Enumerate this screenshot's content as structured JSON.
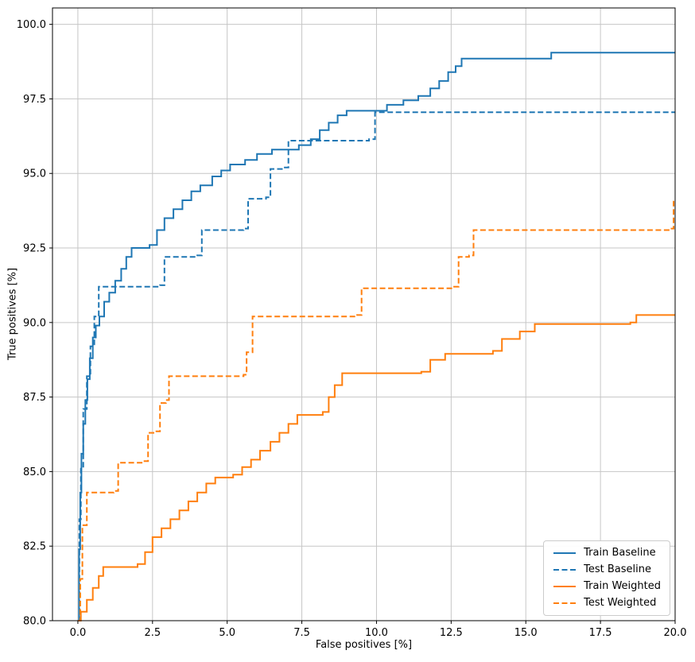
{
  "figure": {
    "xlabel": "False positives [%]",
    "ylabel": "True positives [%]"
  },
  "chart_data": {
    "type": "line",
    "subtype": "roc-step-curves",
    "title": "",
    "xlabel": "False positives [%]",
    "ylabel": "True positives [%]",
    "xlim": [
      0,
      20
    ],
    "ylim": [
      80,
      100
    ],
    "grid": true,
    "legend_position": "lower right",
    "xticks": [
      0.0,
      2.5,
      5.0,
      7.5,
      10.0,
      12.5,
      15.0,
      17.5,
      20.0
    ],
    "yticks": [
      80.0,
      82.5,
      85.0,
      87.5,
      90.0,
      92.5,
      95.0,
      97.5,
      100.0
    ],
    "xtick_labels": [
      "0.0",
      "2.5",
      "5.0",
      "7.5",
      "10.0",
      "12.5",
      "15.0",
      "17.5",
      "20.0"
    ],
    "ytick_labels": [
      "80.0",
      "82.5",
      "85.0",
      "87.5",
      "90.0",
      "92.5",
      "95.0",
      "97.5",
      "100.0"
    ],
    "colors": {
      "blue": "#1f77b4",
      "orange": "#ff7f0e",
      "grid": "#c6c6c6",
      "axis": "#000000"
    },
    "series": [
      {
        "name": "Train Baseline",
        "color": "#1f77b4",
        "line": "solid",
        "points": [
          [
            0,
            80
          ],
          [
            0.04,
            82.4
          ],
          [
            0.08,
            84.3
          ],
          [
            0.12,
            85.6
          ],
          [
            0.18,
            86.6
          ],
          [
            0.25,
            87.4
          ],
          [
            0.32,
            88.1
          ],
          [
            0.4,
            88.8
          ],
          [
            0.5,
            89.5
          ],
          [
            0.6,
            89.9
          ],
          [
            0.72,
            90.2
          ],
          [
            0.88,
            90.7
          ],
          [
            1.05,
            91.0
          ],
          [
            1.25,
            91.4
          ],
          [
            1.45,
            91.8
          ],
          [
            1.62,
            92.2
          ],
          [
            1.8,
            92.5
          ],
          [
            2.4,
            92.6
          ],
          [
            2.65,
            93.1
          ],
          [
            2.9,
            93.5
          ],
          [
            3.2,
            93.8
          ],
          [
            3.5,
            94.1
          ],
          [
            3.8,
            94.4
          ],
          [
            4.1,
            94.6
          ],
          [
            4.5,
            94.9
          ],
          [
            4.8,
            95.1
          ],
          [
            5.1,
            95.3
          ],
          [
            5.6,
            95.45
          ],
          [
            6.0,
            95.65
          ],
          [
            6.5,
            95.8
          ],
          [
            7.4,
            95.95
          ],
          [
            7.8,
            96.15
          ],
          [
            8.1,
            96.45
          ],
          [
            8.4,
            96.7
          ],
          [
            8.7,
            96.95
          ],
          [
            9.0,
            97.1
          ],
          [
            10.35,
            97.3
          ],
          [
            10.9,
            97.45
          ],
          [
            11.4,
            97.6
          ],
          [
            11.8,
            97.85
          ],
          [
            12.1,
            98.1
          ],
          [
            12.4,
            98.4
          ],
          [
            12.65,
            98.6
          ],
          [
            12.85,
            98.85
          ],
          [
            15.85,
            99.05
          ],
          [
            20,
            99.05
          ]
        ]
      },
      {
        "name": "Test Baseline",
        "color": "#1f77b4",
        "line": "dashed",
        "points": [
          [
            0,
            80
          ],
          [
            0.05,
            83.4
          ],
          [
            0.1,
            85.1
          ],
          [
            0.18,
            87.1
          ],
          [
            0.3,
            88.2
          ],
          [
            0.42,
            89.2
          ],
          [
            0.55,
            90.2
          ],
          [
            0.7,
            91.2
          ],
          [
            2.75,
            91.25
          ],
          [
            2.9,
            92.2
          ],
          [
            4.0,
            92.25
          ],
          [
            4.15,
            93.1
          ],
          [
            5.55,
            93.15
          ],
          [
            5.7,
            94.15
          ],
          [
            6.3,
            94.2
          ],
          [
            6.45,
            95.15
          ],
          [
            6.9,
            95.2
          ],
          [
            7.05,
            96.1
          ],
          [
            9.75,
            96.15
          ],
          [
            9.95,
            97.05
          ],
          [
            20,
            97.05
          ]
        ]
      },
      {
        "name": "Train Weighted",
        "color": "#ff7f0e",
        "line": "solid",
        "points": [
          [
            0,
            80
          ],
          [
            0.1,
            80.3
          ],
          [
            0.3,
            80.7
          ],
          [
            0.5,
            81.1
          ],
          [
            0.7,
            81.5
          ],
          [
            0.85,
            81.8
          ],
          [
            2.0,
            81.9
          ],
          [
            2.25,
            82.3
          ],
          [
            2.5,
            82.8
          ],
          [
            2.8,
            83.1
          ],
          [
            3.1,
            83.4
          ],
          [
            3.4,
            83.7
          ],
          [
            3.7,
            84.0
          ],
          [
            4.0,
            84.3
          ],
          [
            4.3,
            84.6
          ],
          [
            4.6,
            84.8
          ],
          [
            5.2,
            84.9
          ],
          [
            5.5,
            85.15
          ],
          [
            5.8,
            85.4
          ],
          [
            6.1,
            85.7
          ],
          [
            6.45,
            86.0
          ],
          [
            6.75,
            86.3
          ],
          [
            7.05,
            86.6
          ],
          [
            7.35,
            86.9
          ],
          [
            8.2,
            87.0
          ],
          [
            8.4,
            87.5
          ],
          [
            8.6,
            87.9
          ],
          [
            8.85,
            88.3
          ],
          [
            11.5,
            88.35
          ],
          [
            11.8,
            88.75
          ],
          [
            12.3,
            88.95
          ],
          [
            13.9,
            89.05
          ],
          [
            14.2,
            89.45
          ],
          [
            14.8,
            89.7
          ],
          [
            15.3,
            89.95
          ],
          [
            18.5,
            90.0
          ],
          [
            18.7,
            90.25
          ],
          [
            20,
            90.25
          ]
        ]
      },
      {
        "name": "Test Weighted",
        "color": "#ff7f0e",
        "line": "dashed",
        "points": [
          [
            0,
            80
          ],
          [
            0.08,
            81.4
          ],
          [
            0.15,
            83.2
          ],
          [
            0.3,
            84.3
          ],
          [
            1.2,
            84.35
          ],
          [
            1.35,
            85.3
          ],
          [
            2.2,
            85.35
          ],
          [
            2.35,
            86.3
          ],
          [
            2.6,
            86.35
          ],
          [
            2.75,
            87.3
          ],
          [
            2.95,
            87.4
          ],
          [
            3.05,
            88.2
          ],
          [
            5.55,
            88.25
          ],
          [
            5.65,
            89.0
          ],
          [
            5.85,
            90.2
          ],
          [
            9.35,
            90.25
          ],
          [
            9.5,
            91.15
          ],
          [
            12.6,
            91.2
          ],
          [
            12.75,
            92.2
          ],
          [
            13.1,
            92.25
          ],
          [
            13.25,
            93.1
          ],
          [
            19.85,
            93.15
          ],
          [
            19.95,
            94.1
          ],
          [
            20,
            94.1
          ]
        ]
      }
    ]
  }
}
